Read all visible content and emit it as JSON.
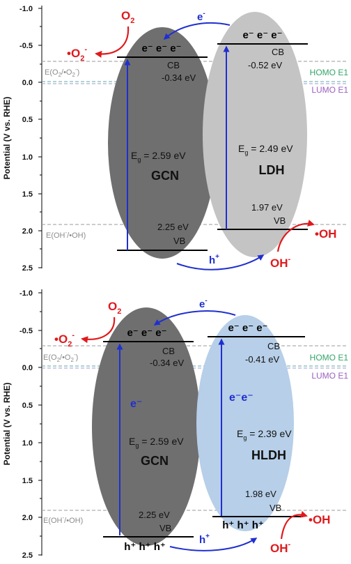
{
  "y_axis_label": "Potential (V vs. RHE)",
  "tick_labels": [
    "-1.0",
    "-0.5",
    "0.0",
    "0.5",
    "1.0",
    "1.5",
    "2.0",
    "2.5"
  ],
  "colors": {
    "gcn": "#6f6f6f",
    "ldh": "#c4c4c4",
    "hldh": "#b7cfe8",
    "arrow_blue": "#1f2fd0",
    "red": "#e0191c",
    "ref_line": "#9a9a9a",
    "homo": "#34a56a",
    "lumo": "#9b5fc0",
    "teal_line": "#5fa8a3"
  },
  "panels": [
    {
      "id": "top",
      "o2": "O",
      "o2_sub": "2",
      "superoxide": "•O",
      "superoxide_sub": "2",
      "superoxide_sup": "-",
      "e_transfer": "e",
      "e_transfer_sup": "-",
      "h_transfer": "h",
      "h_transfer_sup": "+",
      "ref_top_main": "E(O",
      "ref_top_sub1": "2",
      "ref_top_mid": "/•O",
      "ref_top_sub2": "2",
      "ref_top_sup": "-",
      "ref_top_end": ")",
      "ref_bottom_main": "E(OH",
      "ref_bottom_sup": "-",
      "ref_bottom_end": "/•OH)",
      "homo": "HOMO E1",
      "lumo": "LUMO E1",
      "oh_minus": "OH",
      "oh_minus_sup": "-",
      "oh_radical": "•OH",
      "left": {
        "name": "GCN",
        "cb": "CB",
        "cb_value": "-0.34 eV",
        "vb": "VB",
        "vb_value": "2.25 eV",
        "eg_label": "E",
        "eg_sub": "g",
        "eg_value": " = 2.59 eV",
        "cb_electrons": "e⁻ e⁻ e⁻"
      },
      "right": {
        "name": "LDH",
        "cb": "CB",
        "cb_value": "-0.52 eV",
        "vb": "VB",
        "vb_value": "1.97 eV",
        "eg_label": "E",
        "eg_sub": "g",
        "eg_value": " = 2.49 eV",
        "cb_electrons": "e⁻ e⁻ e⁻"
      }
    },
    {
      "id": "bottom",
      "o2": "O",
      "o2_sub": "2",
      "superoxide": "•O",
      "superoxide_sub": "2",
      "superoxide_sup": "-",
      "e_transfer": "e",
      "e_transfer_sup": "-",
      "h_transfer": "h",
      "h_transfer_sup": "+",
      "ref_top_main": "E(O",
      "ref_top_sub1": "2",
      "ref_top_mid": "/•O",
      "ref_top_sub2": "2",
      "ref_top_sup": "-",
      "ref_top_end": ")",
      "ref_bottom_main": "E(OH",
      "ref_bottom_sup": "-",
      "ref_bottom_end": "/•OH)",
      "homo": "HOMO E1",
      "lumo": "LUMO E1",
      "oh_minus": "OH",
      "oh_minus_sup": "-",
      "oh_radical": "•OH",
      "left": {
        "name": "GCN",
        "cb": "CB",
        "cb_value": "-0.34 eV",
        "vb": "VB",
        "vb_value": "2.25 eV",
        "eg_label": "E",
        "eg_sub": "g",
        "eg_value": " = 2.59 eV",
        "cb_electrons": "e⁻ e⁻ e⁻",
        "vb_holes": "h⁺ h⁺ h⁺",
        "inner_e": "e⁻"
      },
      "right": {
        "name": "HLDH",
        "cb": "CB",
        "cb_value": "-0.41 eV",
        "vb": "VB",
        "vb_value": "1.98 eV",
        "eg_label": "E",
        "eg_sub": "g",
        "eg_value": " = 2.39 eV",
        "cb_electrons": "e⁻ e⁻ e⁻",
        "vb_holes": "h⁺ h⁺ h⁺",
        "inner_e": "e⁻e⁻"
      }
    }
  ]
}
